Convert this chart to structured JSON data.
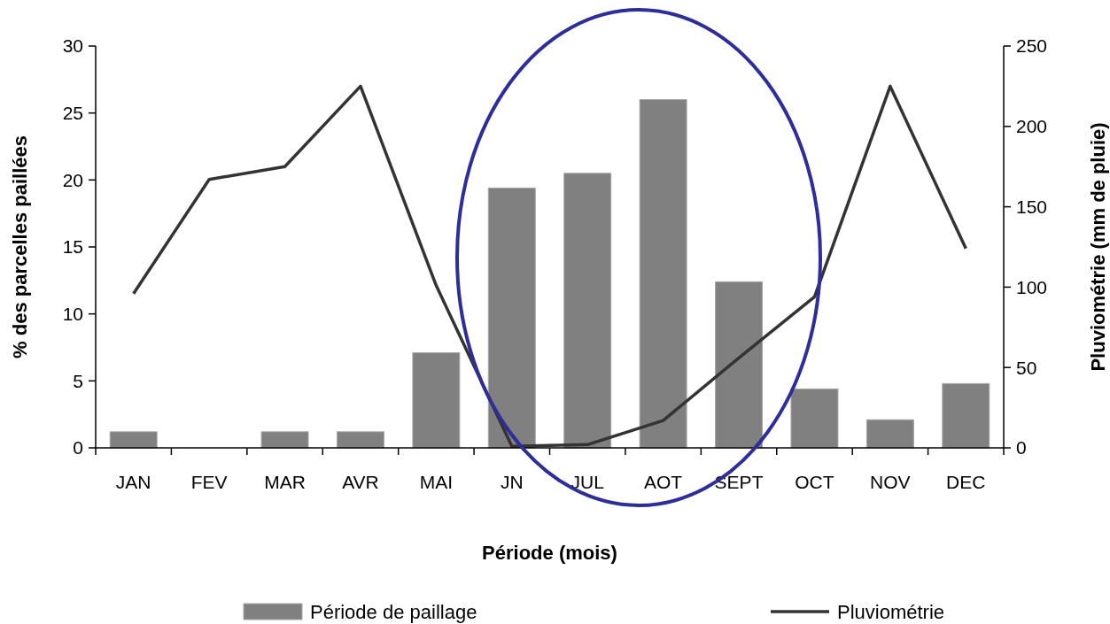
{
  "chart_data": {
    "type": "bar",
    "xlabel": "Période (mois)",
    "ylabel": "% des parcelles paillées",
    "y2label": "Pluviométrie (mm de pluie)",
    "categories": [
      "JAN",
      "FEV",
      "MAR",
      "AVR",
      "MAI",
      "JN",
      "JUL",
      "AOT",
      "SEPT",
      "OCT",
      "NOV",
      "DEC"
    ],
    "series": [
      {
        "name": "Période de paillage",
        "color": "#808080",
        "values": [
          1.2,
          0,
          1.2,
          1.2,
          7.1,
          19.4,
          20.5,
          26,
          12.4,
          4.4,
          2.1,
          4.8
        ]
      },
      {
        "name": "Pluviométrie",
        "type": "line",
        "axis": "y2",
        "color": "#333333",
        "values": [
          96,
          167,
          175,
          225,
          101,
          1,
          2,
          17,
          56,
          94,
          225,
          124
        ]
      }
    ],
    "ylim": [
      0,
      30
    ],
    "yticks": [
      0,
      5,
      10,
      15,
      20,
      25,
      30
    ],
    "y2lim": [
      0,
      250
    ],
    "y2ticks": [
      0,
      50,
      100,
      150,
      200,
      250
    ],
    "legend": "bottom",
    "marker": "none",
    "line_style": "solid",
    "grid": false
  }
}
